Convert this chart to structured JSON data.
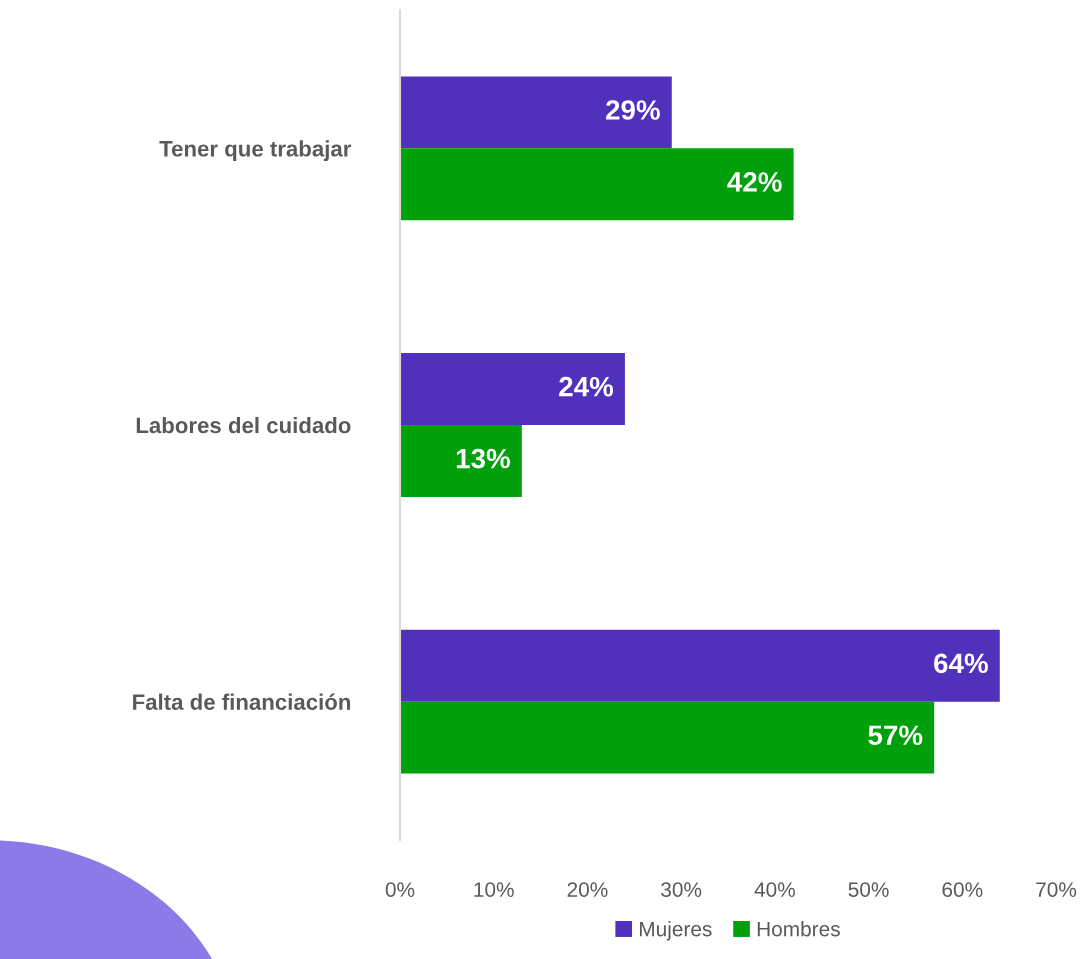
{
  "chart_data": {
    "type": "bar",
    "orientation": "horizontal",
    "categories": [
      "Tener que trabajar",
      "Labores del cuidado",
      "Falta de financiación"
    ],
    "series": [
      {
        "name": "Mujeres",
        "color": "#5131bb",
        "values": [
          29,
          24,
          64
        ],
        "value_labels": [
          "29%",
          "24%",
          "64%"
        ]
      },
      {
        "name": "Hombres",
        "color": "#00a00c",
        "values": [
          42,
          13,
          57
        ],
        "value_labels": [
          "42%",
          "13%",
          "57%"
        ]
      }
    ],
    "xlim": [
      0,
      70
    ],
    "xticks": [
      {
        "value": 0,
        "label": "0%"
      },
      {
        "value": 10,
        "label": "10%"
      },
      {
        "value": 20,
        "label": "20%"
      },
      {
        "value": 30,
        "label": "30%"
      },
      {
        "value": 40,
        "label": "40%"
      },
      {
        "value": 50,
        "label": "50%"
      },
      {
        "value": 60,
        "label": "60%"
      },
      {
        "value": 70,
        "label": "70%"
      }
    ],
    "grid": false,
    "legend": "bottom"
  }
}
